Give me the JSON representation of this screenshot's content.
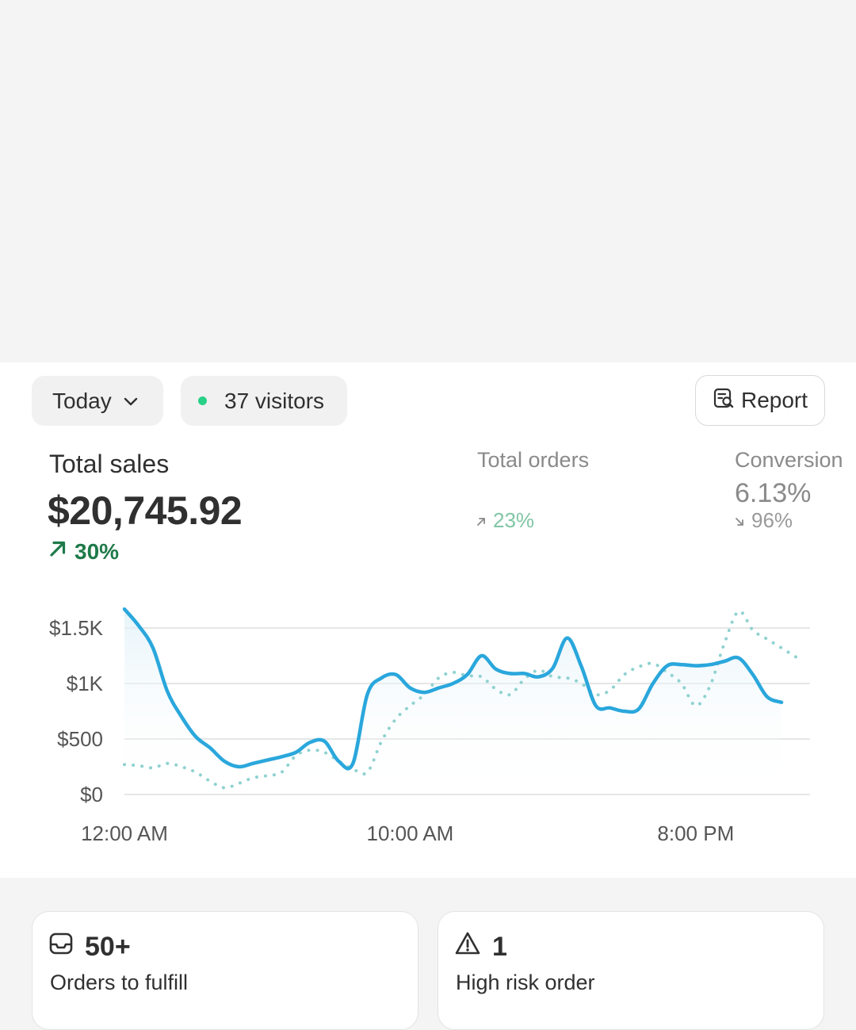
{
  "filters": {
    "date_label": "Today",
    "visitors_label": "37 visitors",
    "report_label": "Report"
  },
  "metrics": {
    "total_sales": {
      "label": "Total sales",
      "value": "$20,745.92",
      "change": "30%"
    },
    "total_orders": {
      "label": "Total orders",
      "change": "23%"
    },
    "conversion": {
      "label": "Conversion",
      "value": "6.13%",
      "change": "96%"
    }
  },
  "colors": {
    "line_current": "#2aa7dc",
    "line_previous": "#8fd2d0",
    "positive": "#1f7a4a",
    "visitor_dot": "#29d087"
  },
  "chart_data": {
    "type": "line",
    "x_ticks": [
      "12:00 AM",
      "10:00 AM",
      "8:00 PM"
    ],
    "y_ticks": [
      "$1.5K",
      "$1K",
      "$500",
      "$0"
    ],
    "ylim": [
      0,
      1500
    ],
    "grid": true,
    "series": [
      {
        "style": "solid",
        "x": [
          0,
          0.5,
          1,
          1.5,
          2,
          2.5,
          3,
          3.5,
          4,
          4.5,
          5,
          5.5,
          6,
          6.5,
          7,
          7.5,
          8,
          8.5,
          9,
          9.5,
          10,
          10.5,
          11,
          11.5,
          12,
          12.5,
          13,
          13.5,
          14,
          14.5,
          15,
          15.5,
          16,
          16.5,
          17,
          17.5,
          18,
          18.5,
          19,
          19.5,
          20,
          20.5,
          21,
          21.5,
          22,
          22.5,
          23
        ],
        "values": [
          1670,
          1520,
          1320,
          930,
          700,
          520,
          420,
          300,
          250,
          280,
          310,
          340,
          380,
          470,
          480,
          300,
          280,
          900,
          1050,
          1080,
          960,
          920,
          960,
          1000,
          1080,
          1250,
          1130,
          1090,
          1090,
          1060,
          1140,
          1410,
          1150,
          800,
          780,
          750,
          770,
          1000,
          1160,
          1170,
          1160,
          1170,
          1200,
          1230,
          1080,
          880,
          830
        ]
      },
      {
        "style": "dotted",
        "x": [
          0,
          0.5,
          1,
          1.5,
          2,
          2.5,
          3,
          3.5,
          4,
          4.5,
          5,
          5.5,
          6,
          6.5,
          7,
          7.5,
          8,
          8.5,
          9,
          9.5,
          10,
          10.5,
          11,
          11.5,
          12,
          12.5,
          13,
          13.5,
          14,
          14.5,
          15,
          15.5,
          16,
          16.5,
          17,
          17.5,
          18,
          18.5,
          19,
          19.5,
          20,
          20.5,
          21,
          21.5,
          22,
          22.5,
          23,
          23.5
        ],
        "values": [
          270,
          260,
          240,
          280,
          250,
          200,
          120,
          60,
          100,
          150,
          170,
          200,
          350,
          400,
          380,
          300,
          230,
          200,
          480,
          680,
          800,
          900,
          1050,
          1100,
          1070,
          1060,
          950,
          900,
          1040,
          1120,
          1060,
          1050,
          1000,
          900,
          940,
          1080,
          1150,
          1180,
          1100,
          1000,
          800,
          980,
          1360,
          1650,
          1480,
          1400,
          1320,
          1240
        ]
      }
    ]
  },
  "tasks": [
    {
      "value": "50+",
      "label": "Orders to fulfill",
      "icon": "inbox-icon"
    },
    {
      "value": "1",
      "label": "High risk order",
      "icon": "alert-triangle-icon"
    }
  ]
}
